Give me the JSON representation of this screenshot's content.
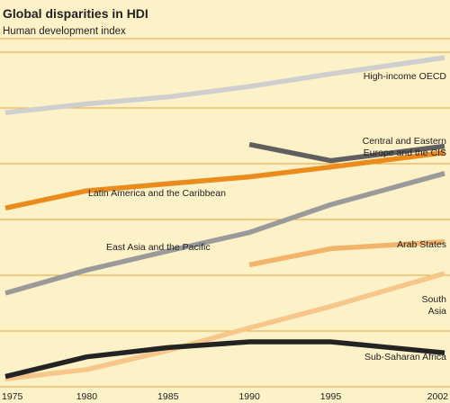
{
  "chart_data": {
    "type": "line",
    "title": "Global disparities in HDI",
    "subtitle": "Human development index",
    "xlabel": "",
    "ylabel": "",
    "xlim": [
      1975,
      2002
    ],
    "ylim": [
      0.36,
      0.96
    ],
    "grid": true,
    "x_ticks": [
      "1975",
      "1980",
      "1985",
      "1990",
      "1995",
      "2002"
    ],
    "series": [
      {
        "name": "High-income OECD",
        "color": "#cfcfcf",
        "points": [
          [
            1975,
            0.84
          ],
          [
            1980,
            0.855
          ],
          [
            1985,
            0.867
          ],
          [
            1990,
            0.885
          ],
          [
            1995,
            0.907
          ],
          [
            2002,
            0.935
          ]
        ]
      },
      {
        "name": "Central and Eastern Europe and the CIS",
        "color": "#5f5f5f",
        "points": [
          [
            1990,
            0.785
          ],
          [
            1995,
            0.757
          ],
          [
            2002,
            0.782
          ]
        ]
      },
      {
        "name": "Latin America and the Caribbean",
        "color": "#ea8b1c",
        "points": [
          [
            1975,
            0.675
          ],
          [
            1980,
            0.705
          ],
          [
            1985,
            0.717
          ],
          [
            1990,
            0.729
          ],
          [
            1995,
            0.746
          ],
          [
            2002,
            0.771
          ]
        ]
      },
      {
        "name": "East Asia and the Pacific",
        "color": "#9a9a9a",
        "points": [
          [
            1975,
            0.528
          ],
          [
            1980,
            0.568
          ],
          [
            1985,
            0.601
          ],
          [
            1990,
            0.633
          ],
          [
            1995,
            0.681
          ],
          [
            2002,
            0.735
          ]
        ]
      },
      {
        "name": "Arab States",
        "color": "#f2b36a",
        "points": [
          [
            1990,
            0.577
          ],
          [
            1995,
            0.605
          ],
          [
            2002,
            0.617
          ]
        ]
      },
      {
        "name": "South Asia",
        "color": "#f6c68a",
        "points": [
          [
            1975,
            0.38
          ],
          [
            1980,
            0.396
          ],
          [
            1985,
            0.429
          ],
          [
            1990,
            0.468
          ],
          [
            1995,
            0.505
          ],
          [
            2002,
            0.562
          ]
        ]
      },
      {
        "name": "Sub-Saharan Africa",
        "color": "#232323",
        "points": [
          [
            1975,
            0.384
          ],
          [
            1980,
            0.418
          ],
          [
            1985,
            0.434
          ],
          [
            1990,
            0.444
          ],
          [
            1995,
            0.444
          ],
          [
            2002,
            0.425
          ]
        ]
      }
    ],
    "labels": [
      {
        "series": "High-income OECD",
        "lines": [
          "High-income OECD"
        ]
      },
      {
        "series": "Central and Eastern Europe and the CIS",
        "lines": [
          "Central and Eastern",
          "Europe and the CIS"
        ]
      },
      {
        "series": "Latin America and the Caribbean",
        "lines": [
          "Latin America and the Caribbean"
        ]
      },
      {
        "series": "East Asia and the Pacific",
        "lines": [
          "East Asia and the Pacific"
        ]
      },
      {
        "series": "Arab States",
        "lines": [
          "Arab States"
        ]
      },
      {
        "series": "South Asia",
        "lines": [
          "South",
          "Asia"
        ]
      },
      {
        "series": "Sub-Saharan Africa",
        "lines": [
          "Sub-Saharan Africa"
        ]
      }
    ]
  }
}
